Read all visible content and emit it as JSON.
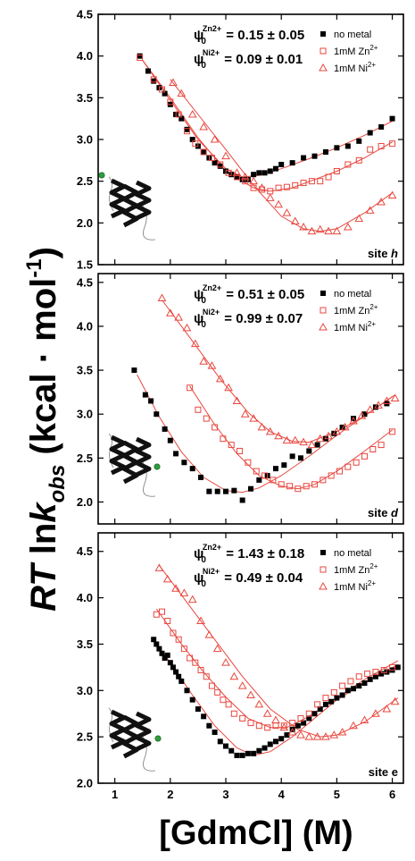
{
  "figure": {
    "ylabel": {
      "main": "RT",
      "ln": " ln",
      "k": "k",
      "sub": "obs",
      "units": " (kcal · mol",
      "sup": "-1",
      "close": ")"
    },
    "xlabel": "[GdmCl] (M)"
  },
  "legend": [
    "no metal",
    "1mM Zn",
    "1mM Ni"
  ],
  "legend_sup": [
    "",
    "2+",
    "2+"
  ],
  "colors": {
    "no_metal": "#000000",
    "zn": "#e8473f",
    "ni": "#e8473f",
    "fit": "#e8473f"
  },
  "chart_data": [
    {
      "type": "scatter",
      "site_label": {
        "text": "site ",
        "letter": "h"
      },
      "psi": [
        {
          "sym": "ψ",
          "sub": "0",
          "sup": "Zn2+",
          "text": " = 0.15 ± 0.05"
        },
        {
          "sym": "ψ",
          "sub": "0",
          "sup": "Ni2+",
          "text": " = 0.09 ± 0.01"
        }
      ],
      "xlim": [
        0.7,
        6.2
      ],
      "ylim": [
        1.5,
        4.5
      ],
      "xticks": [
        "1",
        "2",
        "3",
        "4",
        "5",
        "6"
      ],
      "yticks": [
        "1.5",
        "2.0",
        "2.5",
        "3.0",
        "3.5",
        "4.0",
        "4.5"
      ],
      "series": [
        {
          "name": "no metal",
          "marker": "square-filled",
          "x": [
            1.45,
            1.6,
            1.7,
            1.8,
            1.9,
            2.0,
            2.1,
            2.2,
            2.3,
            2.4,
            2.5,
            2.6,
            2.7,
            2.8,
            2.9,
            3.0,
            3.1,
            3.2,
            3.3,
            3.4,
            3.5,
            3.6,
            3.7,
            3.8,
            3.9,
            4.0,
            4.2,
            4.4,
            4.6,
            4.8,
            5.0,
            5.2,
            5.4,
            5.6,
            5.8,
            6.0
          ],
          "y": [
            4.0,
            3.82,
            3.7,
            3.62,
            3.55,
            3.42,
            3.3,
            3.25,
            3.12,
            3.0,
            2.92,
            2.85,
            2.78,
            2.72,
            2.68,
            2.62,
            2.58,
            2.55,
            2.52,
            2.52,
            2.58,
            2.6,
            2.6,
            2.62,
            2.65,
            2.7,
            2.72,
            2.78,
            2.8,
            2.85,
            2.9,
            2.92,
            2.98,
            3.08,
            3.15,
            3.25
          ]
        },
        {
          "name": "1mM Zn2+",
          "marker": "square-open",
          "x": [
            1.45,
            1.7,
            1.85,
            2.0,
            2.15,
            2.3,
            2.45,
            2.6,
            2.75,
            2.9,
            3.05,
            3.2,
            3.35,
            3.5,
            3.65,
            3.8,
            3.95,
            4.1,
            4.25,
            4.4,
            4.55,
            4.7,
            4.85,
            5.0,
            5.2,
            5.4,
            5.6,
            5.8,
            6.0
          ],
          "y": [
            3.98,
            3.72,
            3.6,
            3.45,
            3.3,
            3.1,
            2.95,
            2.85,
            2.78,
            2.7,
            2.6,
            2.55,
            2.5,
            2.42,
            2.4,
            2.38,
            2.42,
            2.43,
            2.45,
            2.48,
            2.5,
            2.5,
            2.55,
            2.62,
            2.7,
            2.75,
            2.88,
            2.92,
            2.95
          ]
        },
        {
          "name": "1mM Ni2+",
          "marker": "triangle-open",
          "x": [
            2.05,
            2.2,
            2.4,
            2.6,
            2.8,
            3.0,
            3.2,
            3.35,
            3.5,
            3.65,
            3.8,
            3.95,
            4.1,
            4.25,
            4.4,
            4.55,
            4.7,
            4.85,
            5.0,
            5.2,
            5.4,
            5.6,
            5.8,
            6.0
          ],
          "y": [
            3.68,
            3.55,
            3.3,
            3.15,
            3.0,
            2.8,
            2.6,
            2.55,
            2.5,
            2.42,
            2.3,
            2.22,
            2.12,
            2.02,
            1.95,
            1.9,
            1.92,
            1.9,
            1.9,
            1.95,
            2.05,
            2.15,
            2.25,
            2.33
          ]
        }
      ],
      "fits": [
        {
          "x": [
            1.5,
            2.0,
            2.5,
            3.0,
            3.3,
            3.6,
            4.0,
            4.5,
            5.0,
            5.5,
            6.0
          ],
          "y": [
            3.95,
            3.47,
            3.0,
            2.65,
            2.55,
            2.57,
            2.65,
            2.77,
            2.9,
            3.05,
            3.22
          ]
        },
        {
          "x": [
            1.5,
            2.0,
            2.5,
            3.0,
            3.5,
            3.8,
            4.2,
            4.6,
            5.0,
            5.5,
            6.0
          ],
          "y": [
            3.95,
            3.5,
            3.02,
            2.62,
            2.42,
            2.38,
            2.42,
            2.52,
            2.62,
            2.78,
            2.97
          ]
        },
        {
          "x": [
            2.0,
            2.5,
            3.0,
            3.5,
            4.0,
            4.4,
            4.7,
            5.0,
            5.5,
            6.0
          ],
          "y": [
            3.72,
            3.3,
            2.88,
            2.45,
            2.08,
            1.93,
            1.9,
            1.93,
            2.12,
            2.36
          ]
        }
      ]
    },
    {
      "type": "scatter",
      "site_label": {
        "text": "site ",
        "letter": "d"
      },
      "psi": [
        {
          "sym": "ψ",
          "sub": "0",
          "sup": "Zn2+",
          "text": " = 0.51 ± 0.05"
        },
        {
          "sym": "ψ",
          "sub": "0",
          "sup": "Ni2+",
          "text": " = 0.99 ± 0.07"
        }
      ],
      "xlim": [
        0.7,
        6.2
      ],
      "ylim": [
        1.75,
        4.6
      ],
      "xticks": [
        "1",
        "2",
        "3",
        "4",
        "5",
        "6"
      ],
      "yticks": [
        "2.0",
        "2.5",
        "3.0",
        "3.5",
        "4.0",
        "4.5"
      ],
      "series": [
        {
          "name": "no metal",
          "marker": "square-filled",
          "x": [
            1.35,
            1.55,
            1.65,
            1.75,
            1.9,
            2.0,
            2.1,
            2.25,
            2.4,
            2.55,
            2.7,
            2.85,
            3.0,
            3.15,
            3.3,
            3.45,
            3.6,
            3.75,
            3.9,
            4.05,
            4.2,
            4.35,
            4.5,
            4.65,
            4.8,
            4.95,
            5.1,
            5.3,
            5.5,
            5.7,
            5.9
          ],
          "y": [
            3.5,
            3.22,
            3.15,
            3.0,
            2.83,
            2.7,
            2.55,
            2.45,
            2.38,
            2.28,
            2.12,
            2.12,
            2.12,
            2.13,
            2.02,
            2.15,
            2.25,
            2.3,
            2.38,
            2.42,
            2.52,
            2.5,
            2.58,
            2.65,
            2.72,
            2.78,
            2.85,
            2.95,
            3.0,
            3.08,
            3.12
          ]
        },
        {
          "name": "1mM Zn2+",
          "marker": "square-open",
          "x": [
            2.35,
            2.5,
            2.65,
            2.8,
            2.95,
            3.1,
            3.25,
            3.4,
            3.55,
            3.7,
            3.85,
            4.0,
            4.15,
            4.3,
            4.45,
            4.6,
            4.75,
            4.9,
            5.05,
            5.2,
            5.35,
            5.5,
            5.65,
            5.8,
            6.0
          ],
          "y": [
            3.3,
            3.05,
            2.95,
            2.85,
            2.72,
            2.65,
            2.58,
            2.45,
            2.35,
            2.3,
            2.25,
            2.2,
            2.18,
            2.15,
            2.18,
            2.2,
            2.25,
            2.3,
            2.35,
            2.4,
            2.45,
            2.52,
            2.6,
            2.65,
            2.8
          ]
        },
        {
          "name": "1mM Ni2+",
          "marker": "triangle-open",
          "x": [
            1.85,
            2.0,
            2.15,
            2.3,
            2.45,
            2.6,
            2.75,
            2.9,
            3.05,
            3.2,
            3.35,
            3.5,
            3.65,
            3.8,
            3.95,
            4.1,
            4.25,
            4.4,
            4.55,
            4.7,
            4.85,
            5.0,
            5.15,
            5.3,
            5.45,
            5.6,
            5.75,
            5.9,
            6.05
          ],
          "y": [
            4.32,
            4.15,
            4.1,
            3.98,
            3.8,
            3.6,
            3.55,
            3.4,
            3.3,
            3.15,
            3.0,
            2.95,
            2.85,
            2.8,
            2.75,
            2.7,
            2.7,
            2.68,
            2.65,
            2.72,
            2.75,
            2.8,
            2.85,
            2.92,
            2.98,
            3.05,
            3.1,
            3.15,
            3.18
          ]
        }
      ],
      "fits": [
        {
          "x": [
            1.4,
            1.8,
            2.2,
            2.6,
            3.0,
            3.3,
            3.6,
            4.0,
            4.5,
            5.0,
            5.5,
            6.0
          ],
          "y": [
            3.45,
            2.97,
            2.57,
            2.28,
            2.13,
            2.11,
            2.16,
            2.3,
            2.52,
            2.76,
            2.98,
            3.2
          ]
        },
        {
          "x": [
            2.35,
            2.8,
            3.2,
            3.6,
            4.0,
            4.3,
            4.6,
            5.0,
            5.5,
            6.0
          ],
          "y": [
            3.32,
            2.88,
            2.55,
            2.3,
            2.18,
            2.15,
            2.2,
            2.35,
            2.58,
            2.82
          ]
        },
        {
          "x": [
            1.85,
            2.4,
            2.9,
            3.4,
            3.8,
            4.2,
            4.5,
            5.0,
            5.5,
            6.05
          ],
          "y": [
            4.3,
            3.83,
            3.4,
            3.02,
            2.8,
            2.69,
            2.68,
            2.8,
            2.98,
            3.22
          ]
        }
      ]
    },
    {
      "type": "scatter",
      "site_label": {
        "text": "site e",
        "letter": ""
      },
      "psi": [
        {
          "sym": "ψ",
          "sub": "0",
          "sup": "Zn2+",
          "text": " = 1.43 ± 0.18"
        },
        {
          "sym": "ψ",
          "sub": "0",
          "sup": "Ni2+",
          "text": " = 0.49 ± 0.04"
        }
      ],
      "xlim": [
        0.7,
        6.2
      ],
      "ylim": [
        2.0,
        4.7
      ],
      "xticks": [
        "1",
        "2",
        "3",
        "4",
        "5",
        "6"
      ],
      "yticks": [
        "2.0",
        "2.5",
        "3.0",
        "3.5",
        "4.0",
        "4.5"
      ],
      "series": [
        {
          "name": "no metal",
          "marker": "square-filled",
          "x": [
            1.7,
            1.75,
            1.8,
            1.85,
            1.9,
            1.95,
            2.0,
            2.05,
            2.1,
            2.15,
            2.2,
            2.3,
            2.4,
            2.5,
            2.6,
            2.7,
            2.8,
            2.9,
            3.0,
            3.1,
            3.2,
            3.3,
            3.4,
            3.5,
            3.6,
            3.7,
            3.8,
            3.9,
            4.0,
            4.1,
            4.2,
            4.3,
            4.4,
            4.5,
            4.6,
            4.7,
            4.8,
            4.9,
            5.0,
            5.1,
            5.2,
            5.3,
            5.4,
            5.5,
            5.6,
            5.7,
            5.8,
            5.9,
            6.0,
            6.1
          ],
          "y": [
            3.55,
            3.5,
            3.45,
            3.4,
            3.35,
            3.38,
            3.3,
            3.25,
            3.2,
            3.15,
            3.1,
            3.0,
            2.9,
            2.8,
            2.72,
            2.62,
            2.55,
            2.45,
            2.4,
            2.35,
            2.3,
            2.3,
            2.32,
            2.32,
            2.35,
            2.38,
            2.42,
            2.45,
            2.48,
            2.52,
            2.58,
            2.62,
            2.65,
            2.7,
            2.75,
            2.8,
            2.85,
            2.88,
            2.92,
            2.95,
            3.0,
            3.02,
            3.05,
            3.08,
            3.12,
            3.15,
            3.18,
            3.2,
            3.22,
            3.25
          ]
        },
        {
          "name": "1mM Zn2+",
          "marker": "square-open",
          "x": [
            1.75,
            1.85,
            1.95,
            2.05,
            2.15,
            2.25,
            2.35,
            2.45,
            2.55,
            2.65,
            2.75,
            2.85,
            2.95,
            3.05,
            3.15,
            3.3,
            3.45,
            3.6,
            3.75,
            3.9,
            4.05,
            4.2,
            4.35,
            4.5,
            4.65,
            4.8,
            4.95,
            5.1,
            5.25,
            5.4,
            5.55,
            5.7,
            5.85,
            6.0
          ],
          "y": [
            3.82,
            3.85,
            3.75,
            3.62,
            3.55,
            3.45,
            3.35,
            3.3,
            3.22,
            3.15,
            3.05,
            2.98,
            2.9,
            2.85,
            2.75,
            2.7,
            2.65,
            2.62,
            2.6,
            2.62,
            2.62,
            2.65,
            2.7,
            2.75,
            2.85,
            2.92,
            2.98,
            3.05,
            3.1,
            3.15,
            3.18,
            3.2,
            3.22,
            3.25
          ]
        },
        {
          "name": "1mM Ni2+",
          "marker": "triangle-open",
          "x": [
            1.8,
            1.95,
            2.1,
            2.25,
            2.4,
            2.55,
            2.7,
            2.85,
            3.0,
            3.15,
            3.3,
            3.45,
            3.6,
            3.75,
            3.9,
            4.05,
            4.2,
            4.35,
            4.5,
            4.65,
            4.8,
            4.95,
            5.1,
            5.3,
            5.5,
            5.7,
            5.9,
            6.05
          ],
          "y": [
            4.32,
            4.2,
            4.1,
            4.05,
            3.98,
            3.75,
            3.6,
            3.45,
            3.3,
            3.15,
            3.05,
            2.95,
            2.85,
            2.75,
            2.68,
            2.6,
            2.55,
            2.52,
            2.5,
            2.5,
            2.5,
            2.52,
            2.55,
            2.62,
            2.68,
            2.75,
            2.8,
            2.88
          ]
        }
      ],
      "fits": [
        {
          "x": [
            1.7,
            2.0,
            2.4,
            2.8,
            3.2,
            3.5,
            3.8,
            4.2,
            4.6,
            5.0,
            5.5,
            6.1
          ],
          "y": [
            3.55,
            3.3,
            2.95,
            2.62,
            2.38,
            2.3,
            2.34,
            2.5,
            2.7,
            2.9,
            3.08,
            3.28
          ]
        },
        {
          "x": [
            1.75,
            2.2,
            2.6,
            3.0,
            3.4,
            3.8,
            4.1,
            4.5,
            5.0,
            5.5,
            6.1
          ],
          "y": [
            3.88,
            3.5,
            3.2,
            2.93,
            2.7,
            2.6,
            2.6,
            2.72,
            2.92,
            3.12,
            3.32
          ]
        },
        {
          "x": [
            1.8,
            2.3,
            2.8,
            3.3,
            3.8,
            4.3,
            4.7,
            5.0,
            5.5,
            6.1
          ],
          "y": [
            4.35,
            3.95,
            3.55,
            3.15,
            2.8,
            2.58,
            2.5,
            2.52,
            2.66,
            2.92
          ]
        }
      ]
    }
  ]
}
